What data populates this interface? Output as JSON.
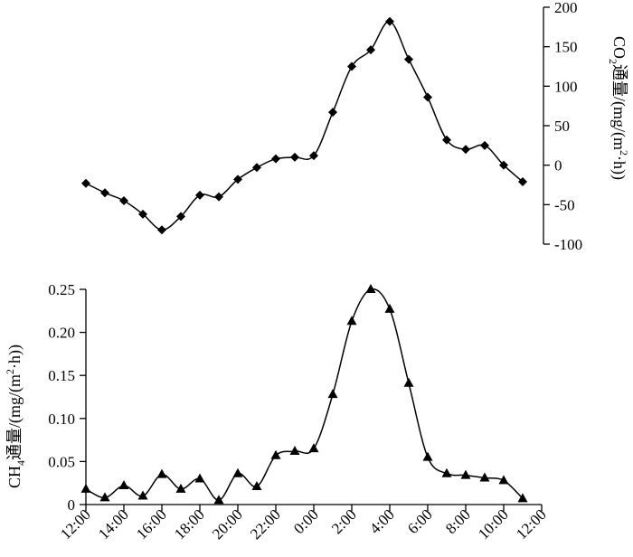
{
  "chart_data": [
    {
      "type": "line",
      "title": "",
      "xlabel": "",
      "ylabel": "CO₂通量/(mg/(m²·h))",
      "ylabel_parts": {
        "a": "CO",
        "sub": "2",
        "b": "通量/(mg/(m",
        "sup": "2",
        "c": "·h))"
      },
      "ylim": [
        -100,
        200
      ],
      "yticks": [
        200,
        150,
        100,
        50,
        0,
        -50,
        -100
      ],
      "y_axis_side": "right",
      "grid": false,
      "marker": "diamond",
      "x_hours": [
        12,
        13,
        14,
        15,
        16,
        17,
        18,
        19,
        20,
        21,
        22,
        23,
        24,
        25,
        26,
        27,
        28,
        29,
        30,
        31,
        32,
        33,
        34,
        35
      ],
      "x": [
        "12:00",
        "13:00",
        "14:00",
        "15:00",
        "16:00",
        "17:00",
        "18:00",
        "19:00",
        "20:00",
        "21:00",
        "22:00",
        "23:00",
        "0:00",
        "1:00",
        "2:00",
        "3:00",
        "4:00",
        "5:00",
        "6:00",
        "7:00",
        "8:00",
        "9:00",
        "10:00",
        "11:00"
      ],
      "values": [
        -23,
        -35,
        -45,
        -62,
        -82,
        -65,
        -38,
        -40,
        -18,
        -3,
        8,
        10,
        12,
        67,
        125,
        146,
        182,
        134,
        86,
        32,
        20,
        25,
        0,
        -21
      ]
    },
    {
      "type": "line",
      "title": "",
      "xlabel": "",
      "ylabel": "CH₄通量/(mg/(m²·h))",
      "ylabel_parts": {
        "a": "CH",
        "sub": "4",
        "b": "通量/(mg/(m",
        "sup": "2",
        "c": "·h))"
      },
      "ylim": [
        0,
        0.25
      ],
      "yticks": [
        "0.25",
        "0.20",
        "0.15",
        "0.10",
        "0.05",
        "0"
      ],
      "ytick_values": [
        0.25,
        0.2,
        0.15,
        0.1,
        0.05,
        0
      ],
      "y_axis_side": "left",
      "grid": false,
      "marker": "triangle",
      "xticks": [
        "12:00",
        "14:00",
        "16:00",
        "18:00",
        "20:00",
        "22:00",
        "0:00",
        "2:00",
        "4:00",
        "6:00",
        "8:00",
        "10:00",
        "12:00"
      ],
      "xtick_hours": [
        12,
        14,
        16,
        18,
        20,
        22,
        24,
        26,
        28,
        30,
        32,
        34,
        36
      ],
      "x_hours": [
        12,
        13,
        14,
        15,
        16,
        17,
        18,
        19,
        20,
        21,
        22,
        23,
        24,
        25,
        26,
        27,
        28,
        29,
        30,
        31,
        32,
        33,
        34,
        35
      ],
      "x": [
        "12:00",
        "13:00",
        "14:00",
        "15:00",
        "16:00",
        "17:00",
        "18:00",
        "19:00",
        "20:00",
        "21:00",
        "22:00",
        "23:00",
        "0:00",
        "1:00",
        "2:00",
        "3:00",
        "4:00",
        "5:00",
        "6:00",
        "7:00",
        "8:00",
        "9:00",
        "10:00",
        "11:00"
      ],
      "values": [
        0.018,
        0.008,
        0.022,
        0.01,
        0.035,
        0.018,
        0.03,
        0.005,
        0.036,
        0.021,
        0.057,
        0.062,
        0.065,
        0.128,
        0.213,
        0.25,
        0.227,
        0.141,
        0.055,
        0.036,
        0.034,
        0.031,
        0.028,
        0.007
      ]
    }
  ]
}
